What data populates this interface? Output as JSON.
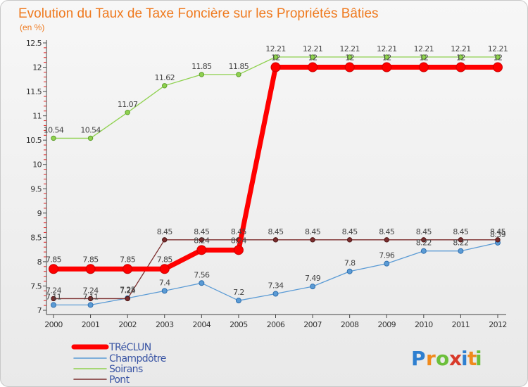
{
  "chart_data": {
    "type": "line",
    "title": "Evolution du Taux de Taxe Foncière sur les Propriétés Bâties",
    "subtitle": "(en %)",
    "xlabel": "",
    "ylabel": "",
    "ylim": [
      7,
      12.5
    ],
    "yticks": [
      "7",
      "7.5",
      "8",
      "8.5",
      "9",
      "9.5",
      "10",
      "10.5",
      "11",
      "11.5",
      "12",
      "12.5"
    ],
    "categories": [
      "2000",
      "2001",
      "2002",
      "2003",
      "2004",
      "2005",
      "2006",
      "2007",
      "2008",
      "2009",
      "2010",
      "2011",
      "2012"
    ],
    "series": [
      {
        "name": "TRéCLUN",
        "color": "#ff0000",
        "values": [
          7.85,
          7.85,
          7.85,
          7.85,
          8.24,
          8.24,
          12,
          12,
          12,
          12,
          12,
          12,
          12
        ],
        "labels": [
          "7.85",
          "7.85",
          "7.85",
          "7.85",
          "8.24",
          "8.24",
          "12",
          "12",
          "12",
          "12",
          "12",
          "12",
          "12"
        ]
      },
      {
        "name": "Champdôtre",
        "color": "#5b9bd5",
        "values": [
          7.11,
          7.11,
          7.25,
          7.4,
          7.56,
          7.2,
          7.34,
          7.49,
          7.8,
          7.96,
          8.22,
          8.22,
          8.39
        ],
        "labels": [
          "7.11",
          "7.11",
          "7.25",
          "7.4",
          "7.56",
          "7.2",
          "7.34",
          "7.49",
          "7.8",
          "7.96",
          "8.22",
          "8.22",
          "8.39"
        ]
      },
      {
        "name": "Soirans",
        "color": "#8fd14f",
        "values": [
          10.54,
          10.54,
          11.07,
          11.62,
          11.85,
          11.85,
          12.21,
          12.21,
          12.21,
          12.21,
          12.21,
          12.21,
          12.21
        ],
        "labels": [
          "10.54",
          "10.54",
          "11.07",
          "11.62",
          "11.85",
          "11.85",
          "12.21",
          "12.21",
          "12.21",
          "12.21",
          "12.21",
          "12.21",
          "12.21"
        ]
      },
      {
        "name": "Pont",
        "color": "#7b2d2d",
        "values": [
          7.24,
          7.24,
          7.24,
          8.45,
          8.45,
          8.45,
          8.45,
          8.45,
          8.45,
          8.45,
          8.45,
          8.45,
          8.45
        ],
        "labels": [
          "7.24",
          "7.24",
          "7.24",
          "8.45",
          "8.45",
          "8.45",
          "8.45",
          "8.45",
          "8.45",
          "8.45",
          "8.45",
          "8.45",
          "8.45"
        ]
      }
    ],
    "legend_position": "bottom-left",
    "grid": false
  },
  "brand": {
    "letters": [
      "P",
      "r",
      "o",
      "x",
      "i",
      "t",
      "i"
    ],
    "colors": [
      "#2e7fd0",
      "#f08a1c",
      "#6cbf3a",
      "#d83a2a",
      "#2e7fd0",
      "#f08a1c",
      "#6cbf3a"
    ]
  },
  "colors": {
    "axis": "#444444",
    "tick_red": "#dd2222"
  }
}
